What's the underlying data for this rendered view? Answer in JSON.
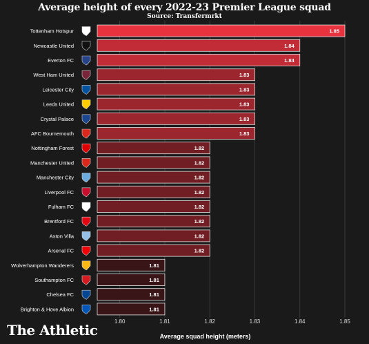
{
  "header": {
    "title": "Average height of every 2022-23 Premier League squad",
    "subtitle": "Source: Transfermrkt"
  },
  "footer": {
    "logo": "The Athletic"
  },
  "colors": {
    "background": "#1a1a1a",
    "bar_high": "#e8333f",
    "bar_low": "#3a1517",
    "bar_border": "#e6e6e6"
  },
  "chart_data": {
    "type": "bar",
    "orientation": "horizontal",
    "title": "Average height of every 2022-23 Premier League squad",
    "subtitle": "Source: Transfermrkt",
    "xlabel": "Average squad height (meters)",
    "ylabel": "",
    "xlim": [
      1.795,
      1.85
    ],
    "xticks": [
      "1.80",
      "1.81",
      "1.82",
      "1.83",
      "1.84",
      "1.85"
    ],
    "grid": true,
    "categories": [
      "Tottenham Hotspur",
      "Newcastle United",
      "Everton FC",
      "West Ham United",
      "Leicester City",
      "Leeds United",
      "Crystal Palace",
      "AFC Bournemouth",
      "Nottingham Forest",
      "Manchester United",
      "Manchester City",
      "Liverpool FC",
      "Fulham FC",
      "Brentford FC",
      "Aston Villa",
      "Arsenal FC",
      "Wolverhampton Wanderers",
      "Southampton FC",
      "Chelsea FC",
      "Brighton & Hove Albion"
    ],
    "values": [
      1.85,
      1.84,
      1.84,
      1.83,
      1.83,
      1.83,
      1.83,
      1.83,
      1.82,
      1.82,
      1.82,
      1.82,
      1.82,
      1.82,
      1.82,
      1.82,
      1.81,
      1.81,
      1.81,
      1.81
    ],
    "labels": [
      "1.85",
      "1.84",
      "1.84",
      "1.83",
      "1.83",
      "1.83",
      "1.83",
      "1.83",
      "1.82",
      "1.82",
      "1.82",
      "1.82",
      "1.82",
      "1.82",
      "1.82",
      "1.82",
      "1.81",
      "1.81",
      "1.81",
      "1.81"
    ],
    "badge_colors": [
      "#ffffff",
      "#111111",
      "#274488",
      "#7a263a",
      "#0053a0",
      "#ffcd00",
      "#1b458f",
      "#da291c",
      "#dd0000",
      "#da291c",
      "#6cabdd",
      "#c8102e",
      "#ffffff",
      "#e30613",
      "#95bfe5",
      "#ef0107",
      "#fdb913",
      "#d71920",
      "#034694",
      "#0057b8"
    ]
  }
}
